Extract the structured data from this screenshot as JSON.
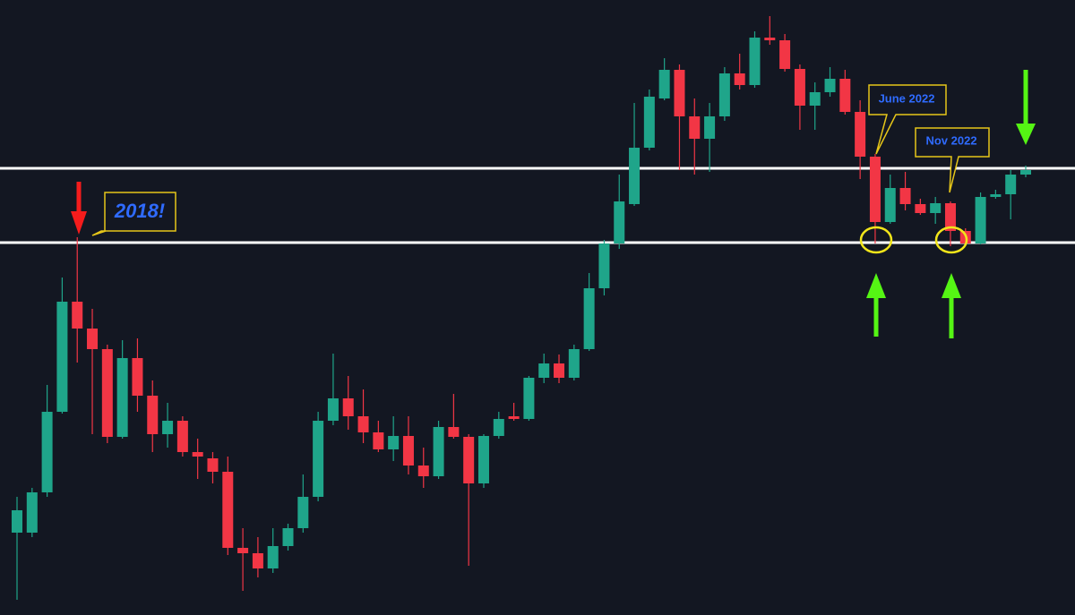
{
  "chart_data": {
    "type": "candlestick",
    "ylim": [
      0,
      687
    ],
    "up_color": "#1fa58a",
    "down_color": "#f23645",
    "open": [
      92,
      92,
      137,
      227,
      350,
      320,
      297,
      199,
      287,
      245,
      202,
      217,
      182,
      175,
      160,
      75,
      69,
      52,
      77,
      97,
      132,
      217,
      242,
      222,
      204,
      185,
      200,
      167,
      155,
      210,
      199,
      147,
      200,
      222,
      219,
      265,
      281,
      265,
      297,
      365,
      415,
      459,
      522,
      577,
      609,
      557,
      532,
      557,
      605,
      592,
      645,
      642,
      610,
      569,
      584,
      599,
      562,
      512,
      439,
      477,
      459,
      449,
      460,
      429,
      415,
      467,
      470,
      492
    ],
    "high": [
      132,
      142,
      257,
      377,
      422,
      342,
      302,
      307,
      309,
      262,
      237,
      222,
      197,
      182,
      177,
      97,
      87,
      97,
      102,
      157,
      227,
      292,
      267,
      252,
      217,
      222,
      222,
      187,
      217,
      247,
      202,
      202,
      227,
      237,
      267,
      292,
      291,
      302,
      382,
      419,
      492,
      572,
      587,
      622,
      615,
      577,
      572,
      612,
      627,
      652,
      669,
      649,
      615,
      595,
      612,
      609,
      575,
      515,
      492,
      495,
      465,
      467,
      462,
      432,
      472,
      475,
      497,
      502
    ],
    "low": [
      17,
      87,
      132,
      225,
      282,
      202,
      192,
      197,
      227,
      182,
      187,
      177,
      152,
      147,
      67,
      27,
      42,
      47,
      72,
      92,
      127,
      212,
      207,
      192,
      182,
      172,
      157,
      142,
      152,
      197,
      55,
      142,
      197,
      217,
      217,
      259,
      259,
      262,
      295,
      357,
      409,
      457,
      519,
      575,
      497,
      492,
      495,
      552,
      587,
      589,
      637,
      607,
      542,
      542,
      579,
      559,
      487,
      415,
      437,
      452,
      447,
      437,
      412,
      414,
      414,
      465,
      442,
      489
    ],
    "close": [
      117,
      137,
      227,
      350,
      320,
      297,
      199,
      287,
      245,
      202,
      217,
      182,
      177,
      160,
      75,
      69,
      52,
      77,
      97,
      132,
      217,
      242,
      222,
      204,
      185,
      200,
      167,
      155,
      210,
      199,
      147,
      200,
      219,
      219,
      265,
      281,
      265,
      297,
      365,
      415,
      462,
      522,
      579,
      609,
      557,
      532,
      557,
      605,
      592,
      645,
      642,
      610,
      569,
      584,
      599,
      562,
      512,
      439,
      477,
      459,
      449,
      460,
      429,
      415,
      467,
      470,
      492,
      497
    ],
    "levels": [
      499,
      416
    ],
    "level_color": "#ffffff",
    "annotations": [
      "2018!",
      "June 2022",
      "Nov 2022"
    ]
  }
}
